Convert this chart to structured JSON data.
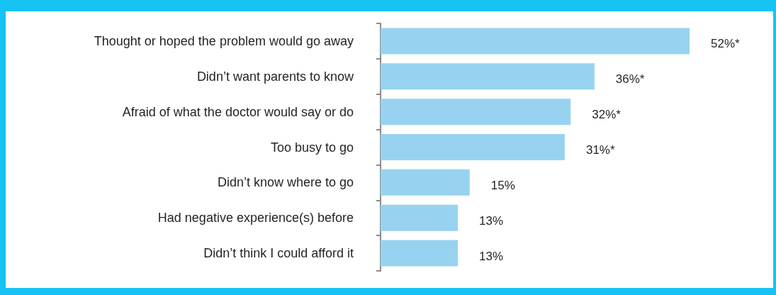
{
  "chart_data": {
    "type": "bar",
    "orientation": "horizontal",
    "categories": [
      "Thought or hoped the problem would go away",
      "Didn’t want parents to know",
      "Afraid of what the doctor would say or do",
      "Too busy to go",
      "Didn’t know where to go",
      "Had negative experience(s) before",
      "Didn’t think I could afford it"
    ],
    "values": [
      52,
      36,
      32,
      31,
      15,
      13,
      13
    ],
    "value_labels": [
      "52%*",
      "36%*",
      "32%*",
      "31%*",
      "15%",
      "13%",
      "13%"
    ],
    "color": "#97d3f0"
  }
}
